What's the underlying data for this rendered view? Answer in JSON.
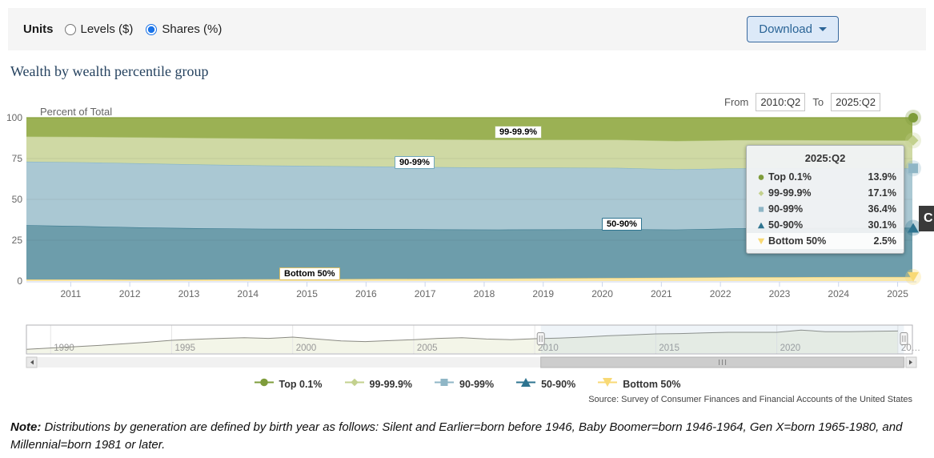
{
  "units_bar": {
    "label": "Units",
    "options": [
      {
        "label": "Levels ($)",
        "selected": false
      },
      {
        "label": "Shares (%)",
        "selected": true
      }
    ],
    "download_label": "Download"
  },
  "title": "Wealth by wealth percentile group",
  "range": {
    "from_label": "From",
    "from_value": "2010:Q2",
    "to_label": "To",
    "to_value": "2025:Q2"
  },
  "chart_data": {
    "type": "area",
    "stacking": "percent",
    "title": "Wealth by wealth percentile group",
    "ylabel": "Percent of Total",
    "ylim": [
      0,
      100
    ],
    "yticks": [
      0,
      25,
      50,
      75,
      100
    ],
    "x": [
      2010.25,
      2011.25,
      2012.25,
      2013.25,
      2014.25,
      2015.25,
      2016.25,
      2017.25,
      2018.25,
      2019.25,
      2020.25,
      2021.25,
      2022.25,
      2023.25,
      2024.25,
      2025.25
    ],
    "xticks": [
      2011,
      2012,
      2013,
      2014,
      2015,
      2016,
      2017,
      2018,
      2019,
      2020,
      2021,
      2022,
      2023,
      2024,
      2025
    ],
    "xtick_labels": [
      "2011",
      "2012",
      "2013",
      "2014",
      "2015",
      "2016",
      "2017",
      "2018",
      "2019",
      "2020",
      "2021",
      "2022",
      "2023",
      "2024",
      "2025"
    ],
    "series": [
      {
        "id": "bottom-50",
        "name": "Bottom 50%",
        "color": "#f9e7a6",
        "line_color": "#e9cd78",
        "marker": {
          "type": "itriangle",
          "color": "#f8d975"
        },
        "values": [
          1.0,
          1.0,
          0.9,
          1.0,
          1.1,
          1.2,
          1.3,
          1.4,
          1.5,
          1.7,
          1.9,
          2.1,
          2.3,
          2.4,
          2.5,
          2.5
        ]
      },
      {
        "id": "50-90",
        "name": "50-90%",
        "color": "#6d9dab",
        "line_color": "#35768c",
        "marker": {
          "type": "triangle",
          "color": "#2e7490"
        },
        "values": [
          33.2,
          32.6,
          31.9,
          31.3,
          30.9,
          30.7,
          30.5,
          30.2,
          30.0,
          29.9,
          29.8,
          29.4,
          29.9,
          30.0,
          30.0,
          30.1
        ]
      },
      {
        "id": "90-99",
        "name": "90-99%",
        "color": "#aac8d3",
        "line_color": "#85b5c6",
        "marker": {
          "type": "square",
          "color": "#8fb6c6"
        },
        "values": [
          38.9,
          39.1,
          39.2,
          39.0,
          38.8,
          38.5,
          38.3,
          38.1,
          37.9,
          37.8,
          37.6,
          36.9,
          36.8,
          36.7,
          36.5,
          36.4
        ]
      },
      {
        "id": "99-99.9",
        "name": "99-99.9%",
        "color": "#cfd9a4",
        "line_color": "#b7c982",
        "marker": {
          "type": "diamond",
          "color": "#c3d18e"
        },
        "values": [
          15.4,
          15.6,
          16.0,
          16.3,
          16.5,
          16.6,
          16.8,
          17.0,
          17.1,
          17.1,
          17.2,
          17.4,
          17.3,
          17.2,
          17.2,
          17.1
        ]
      },
      {
        "id": "top-0.1",
        "name": "Top 0.1%",
        "color": "#9bb154",
        "line_color": "#89a33e",
        "marker": {
          "type": "circle",
          "color": "#7e9c3b"
        },
        "values": [
          11.5,
          11.7,
          12.0,
          12.4,
          12.7,
          13.0,
          13.1,
          13.3,
          13.5,
          13.5,
          13.5,
          14.2,
          13.7,
          13.7,
          13.8,
          13.9
        ]
      }
    ],
    "navigator": {
      "name": "Top 0.1%",
      "x": [
        1989,
        1990,
        1991,
        1992,
        1993,
        1994,
        1995,
        1996,
        1997,
        1998,
        1999,
        2000,
        2001,
        2002,
        2003,
        2004,
        2005,
        2006,
        2007,
        2008,
        2009,
        2010,
        2011,
        2012,
        2013,
        2014,
        2015,
        2016,
        2017,
        2018,
        2019,
        2020,
        2021,
        2022,
        2023,
        2024,
        2025
      ],
      "values": [
        8.2,
        8.6,
        9.0,
        9.4,
        9.9,
        10.4,
        11.0,
        11.3,
        11.6,
        11.8,
        11.6,
        12.0,
        11.4,
        10.8,
        10.6,
        10.9,
        11.2,
        11.6,
        11.8,
        11.4,
        11.2,
        11.5,
        11.7,
        12.0,
        12.4,
        12.7,
        13.0,
        13.1,
        13.3,
        13.5,
        13.5,
        13.5,
        14.2,
        13.7,
        13.7,
        13.8,
        13.9
      ],
      "xmax": 2025.6,
      "xticks": [
        1990,
        1995,
        2000,
        2005,
        2010,
        2015,
        2020,
        2025
      ],
      "xtick_labels": [
        "1990",
        "1995",
        "2000",
        "2005",
        "2010",
        "2015",
        "2020",
        "20…"
      ],
      "selected_range": [
        2010.25,
        2025.25
      ],
      "selected_range_labels": [
        "2010:Q2",
        "2025:Q2"
      ]
    }
  },
  "series_labels": [
    {
      "text": "99-99.9%",
      "border_color": "#a9bd72"
    },
    {
      "text": "90-99%",
      "border_color": "#6fa7bc"
    },
    {
      "text": "50-90%",
      "border_color": "#2e7490"
    },
    {
      "text": "Bottom 50%",
      "border_color": "#d9bd62"
    }
  ],
  "tooltip": {
    "header": "2025:Q2",
    "rows": [
      {
        "name": "Top 0.1%",
        "value": "13.9%",
        "marker": {
          "type": "circle",
          "color": "#7e9c3b"
        }
      },
      {
        "name": "99-99.9%",
        "value": "17.1%",
        "marker": {
          "type": "diamond",
          "color": "#c3d18e"
        }
      },
      {
        "name": "90-99%",
        "value": "36.4%",
        "marker": {
          "type": "square",
          "color": "#8fb6c6"
        }
      },
      {
        "name": "50-90%",
        "value": "30.1%",
        "marker": {
          "type": "triangle",
          "color": "#2e7490"
        }
      },
      {
        "name": "Bottom 50%",
        "value": "2.5%",
        "marker": {
          "type": "itriangle",
          "color": "#f8d975"
        }
      }
    ]
  },
  "legend": [
    {
      "label": "Top 0.1%",
      "marker": {
        "type": "circle",
        "color": "#7e9c3b"
      }
    },
    {
      "label": "99-99.9%",
      "marker": {
        "type": "diamond",
        "color": "#c3d18e"
      }
    },
    {
      "label": "90-99%",
      "marker": {
        "type": "square",
        "color": "#8fb6c6"
      }
    },
    {
      "label": "50-90%",
      "marker": {
        "type": "triangle",
        "color": "#2e7490"
      }
    },
    {
      "label": "Bottom 50%",
      "marker": {
        "type": "itriangle",
        "color": "#f8d975"
      }
    }
  ],
  "source": "Source: Survey of Consumer Finances and Financial Accounts of the United States",
  "note": {
    "label": "Note:",
    "text": " Distributions by generation are defined by birth year as follows: Silent and Earlier=born before 1946, Baby Boomer=born 1946-1964, Gen X=born 1965-1980, and Millennial=born 1981 or later."
  },
  "overlay_badge": "C",
  "colors": {
    "accent_blue": "#2a6496",
    "radio_selected": "#1a73e8"
  }
}
